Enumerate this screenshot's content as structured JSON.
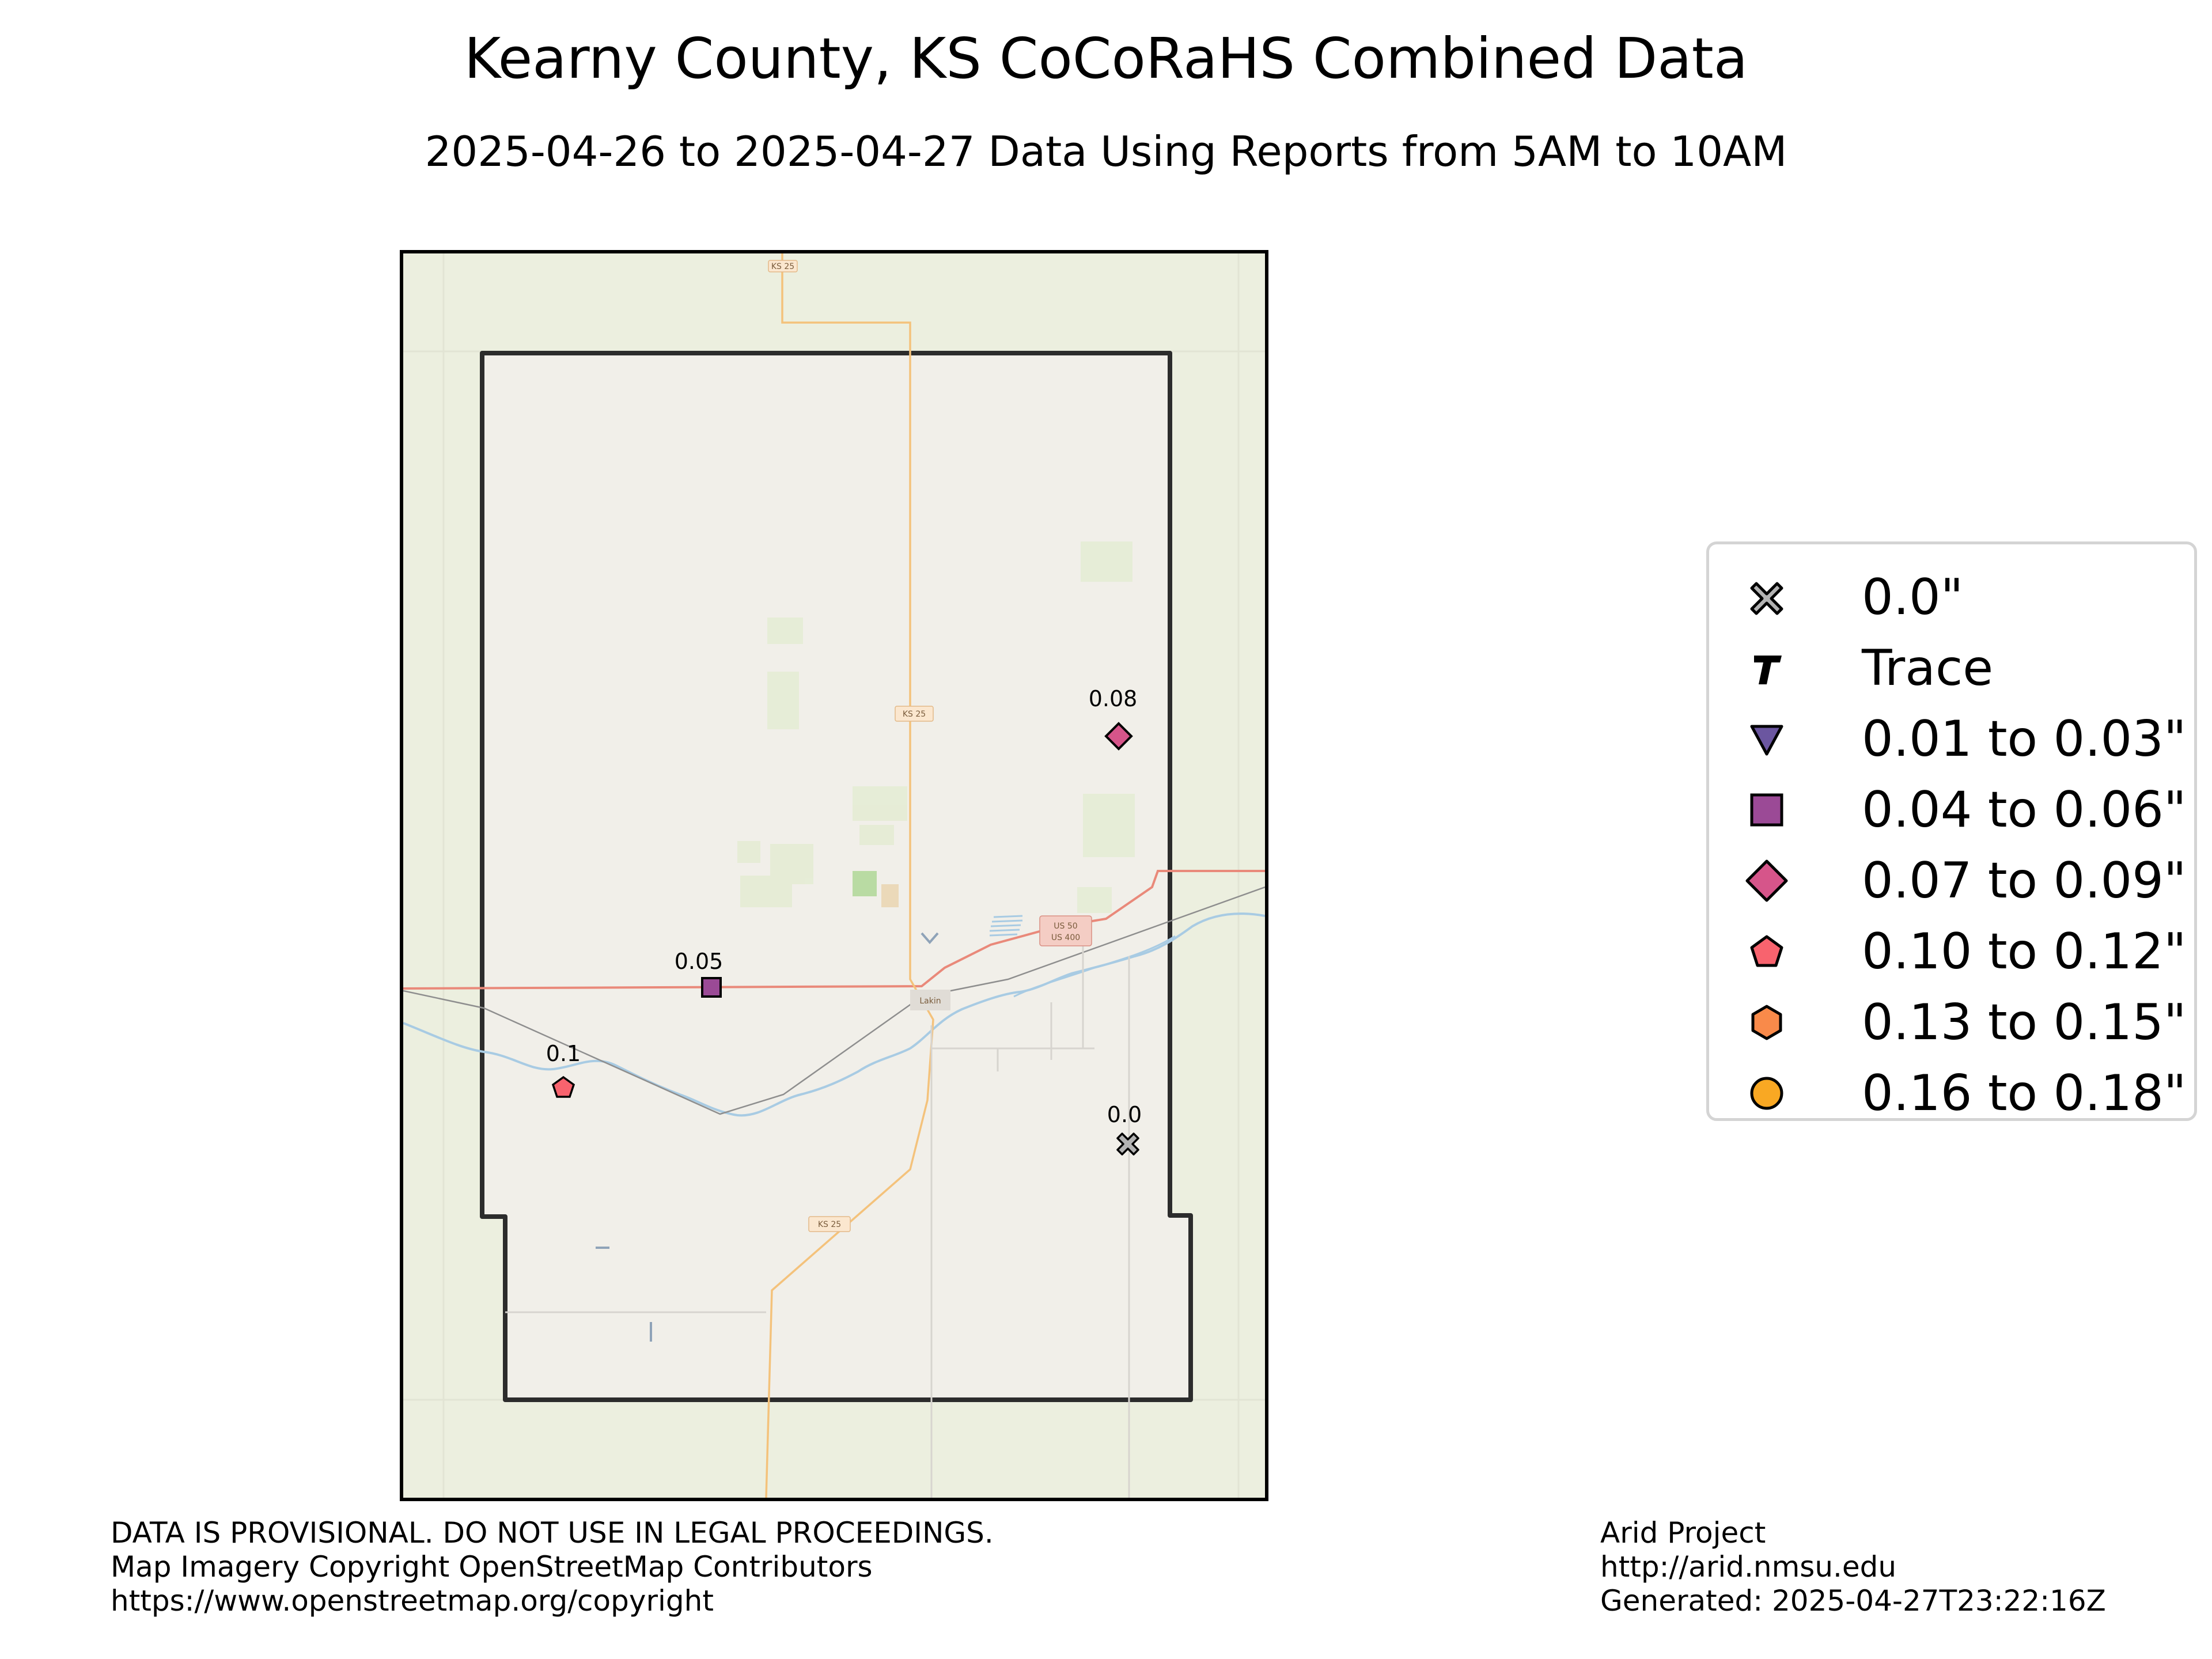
{
  "title": "Kearny County, KS CoCoRaHS Combined Data",
  "subtitle": "2025-04-26 to 2025-04-27 Data Using Reports from 5AM to 10AM",
  "map": {
    "road_labels": [
      "KS 25",
      "KS 25",
      "KS 25",
      "US 50",
      "US 400"
    ],
    "town_label": "Lakin",
    "stations": [
      {
        "value": "0.08",
        "category": "0.07 to 0.09\"",
        "symbol": "diamond-icon",
        "color": "#d6558a"
      },
      {
        "value": "0.05",
        "category": "0.04 to 0.06\"",
        "symbol": "square-icon",
        "color": "#9b4a96"
      },
      {
        "value": "0.1",
        "category": "0.10 to 0.12\"",
        "symbol": "pentagon-icon",
        "color": "#f8636e"
      },
      {
        "value": "0.0",
        "category": "0.0\"",
        "symbol": "x-cross-icon",
        "color": "#b3b3b3"
      }
    ]
  },
  "legend": {
    "items": [
      {
        "label": "0.0\"",
        "symbol": "x-cross-icon",
        "color": "#b3b3b3"
      },
      {
        "label": "Trace",
        "symbol": "t-letter-icon",
        "color": "#000000"
      },
      {
        "label": "0.01 to 0.03\"",
        "symbol": "triangle-down-icon",
        "color": "#6b56a0"
      },
      {
        "label": "0.04 to 0.06\"",
        "symbol": "square-icon",
        "color": "#9b4a96"
      },
      {
        "label": "0.07 to 0.09\"",
        "symbol": "diamond-icon",
        "color": "#d6558a"
      },
      {
        "label": "0.10 to 0.12\"",
        "symbol": "pentagon-icon",
        "color": "#f8636e"
      },
      {
        "label": "0.13 to 0.15\"",
        "symbol": "hexagon-icon",
        "color": "#f98a4a"
      },
      {
        "label": "0.16 to 0.18\"",
        "symbol": "circle-icon",
        "color": "#f9a823"
      }
    ]
  },
  "footer_left": [
    "DATA IS PROVISIONAL. DO NOT USE IN LEGAL PROCEEDINGS.",
    "Map Imagery Copyright OpenStreetMap Contributors",
    "https://www.openstreetmap.org/copyright"
  ],
  "footer_right": [
    "Arid Project",
    "http://arid.nmsu.edu",
    "Generated: 2025-04-27T23:22:16Z"
  ]
}
